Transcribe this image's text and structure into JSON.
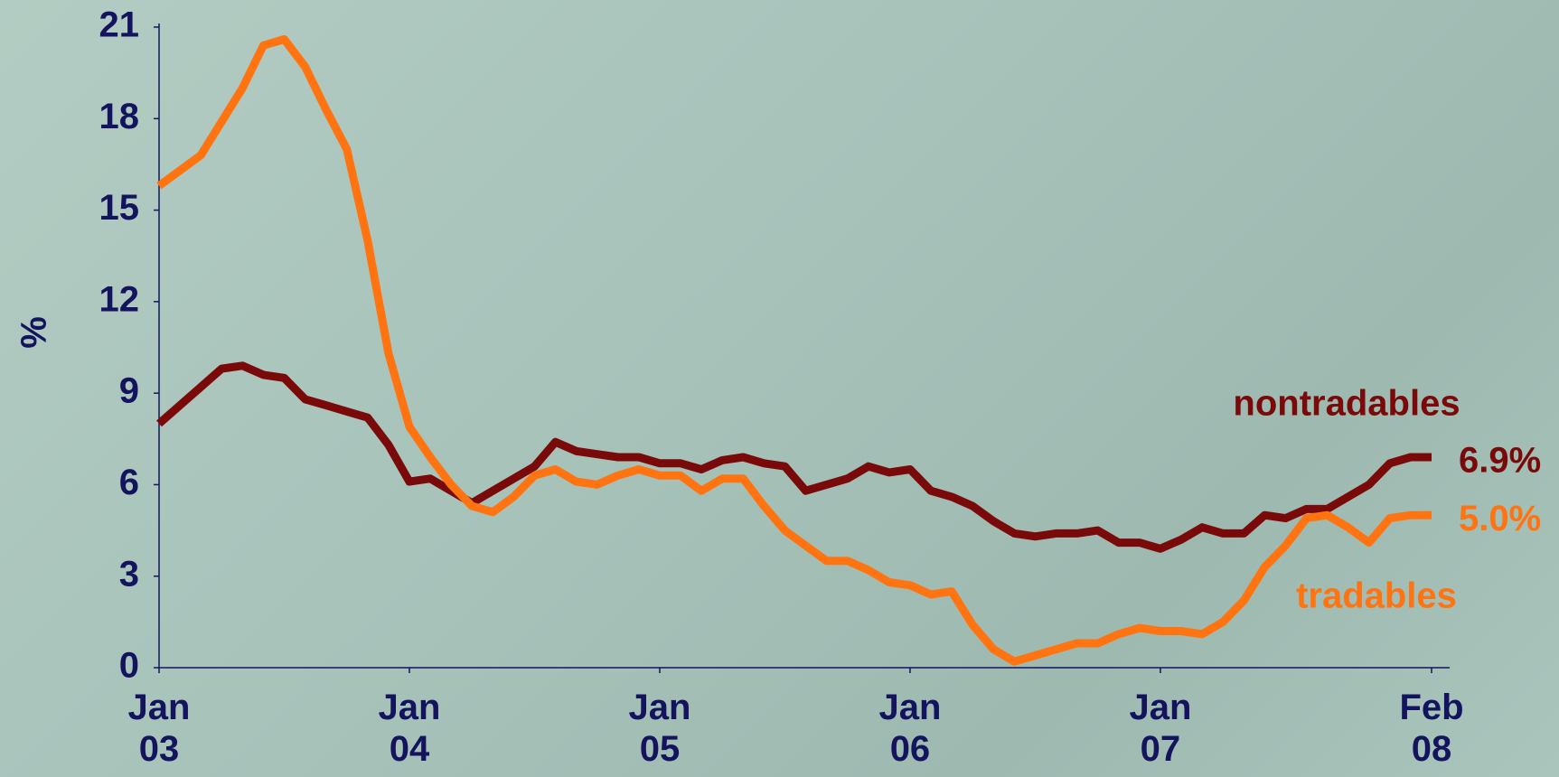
{
  "chart_data": {
    "type": "line",
    "y_label": "%",
    "categories": [
      "Jan 03",
      null,
      null,
      null,
      null,
      null,
      null,
      null,
      null,
      null,
      null,
      null,
      "Jan 04",
      null,
      null,
      null,
      null,
      null,
      null,
      null,
      null,
      null,
      null,
      null,
      "Jan 05",
      null,
      null,
      null,
      null,
      null,
      null,
      null,
      null,
      null,
      null,
      null,
      "Jan 06",
      null,
      null,
      null,
      null,
      null,
      null,
      null,
      null,
      null,
      null,
      null,
      "Jan 07",
      null,
      null,
      null,
      null,
      null,
      null,
      null,
      null,
      null,
      null,
      null,
      null,
      "Feb 08"
    ],
    "series": [
      {
        "name": "nontradables",
        "color": "#7a0a0a",
        "values": [
          8.0,
          8.6,
          9.2,
          9.8,
          9.9,
          9.6,
          9.5,
          8.8,
          8.6,
          8.4,
          8.2,
          7.3,
          6.1,
          6.2,
          5.8,
          5.4,
          5.8,
          6.2,
          6.6,
          7.4,
          7.1,
          7.0,
          6.9,
          6.9,
          6.7,
          6.7,
          6.5,
          6.8,
          6.9,
          6.7,
          6.6,
          5.8,
          6.0,
          6.2,
          6.6,
          6.4,
          6.5,
          5.8,
          5.6,
          5.3,
          4.8,
          4.4,
          4.3,
          4.4,
          4.4,
          4.5,
          4.1,
          4.1,
          3.9,
          4.2,
          4.6,
          4.4,
          4.4,
          5.0,
          4.9,
          5.2,
          5.2,
          5.6,
          6.0,
          6.7,
          6.9,
          6.9
        ],
        "value_labels": [
          null,
          null,
          null,
          null,
          null,
          null,
          null,
          null,
          null,
          null,
          null,
          null,
          null,
          null,
          null,
          null,
          null,
          null,
          null,
          null,
          null,
          null,
          null,
          null,
          null,
          null,
          null,
          null,
          null,
          null,
          null,
          null,
          null,
          null,
          null,
          null,
          null,
          null,
          null,
          null,
          null,
          null,
          null,
          null,
          null,
          null,
          null,
          null,
          null,
          null,
          null,
          null,
          null,
          null,
          null,
          null,
          null,
          null,
          null,
          null,
          null,
          "6.9%"
        ]
      },
      {
        "name": "tradables",
        "color": "#ff7410",
        "values": [
          15.8,
          16.3,
          16.8,
          17.9,
          19.0,
          20.4,
          20.6,
          19.7,
          18.3,
          17.0,
          14.0,
          10.3,
          7.9,
          6.9,
          6.0,
          5.3,
          5.1,
          5.6,
          6.3,
          6.5,
          6.1,
          6.0,
          6.3,
          6.5,
          6.3,
          6.3,
          5.8,
          6.2,
          6.2,
          5.3,
          4.5,
          4.0,
          3.5,
          3.5,
          3.2,
          2.8,
          2.7,
          2.4,
          2.5,
          1.4,
          0.6,
          0.2,
          0.4,
          0.6,
          0.8,
          0.8,
          1.1,
          1.3,
          1.2,
          1.2,
          1.1,
          1.5,
          2.2,
          3.3,
          4.0,
          4.9,
          5.0,
          4.6,
          4.1,
          4.9,
          5.0,
          5.0
        ],
        "value_labels": [
          null,
          null,
          null,
          null,
          null,
          null,
          null,
          null,
          null,
          null,
          null,
          null,
          null,
          null,
          null,
          null,
          null,
          null,
          null,
          null,
          null,
          null,
          null,
          null,
          null,
          null,
          null,
          null,
          null,
          null,
          null,
          null,
          null,
          null,
          null,
          null,
          null,
          null,
          null,
          null,
          null,
          null,
          null,
          null,
          null,
          null,
          null,
          null,
          null,
          null,
          null,
          null,
          null,
          null,
          null,
          null,
          null,
          null,
          null,
          null,
          null,
          "5.0%"
        ]
      }
    ],
    "ylim": [
      0,
      21
    ],
    "yticks": [
      0,
      3,
      6,
      9,
      12,
      15,
      18,
      21
    ],
    "grid": false
  }
}
